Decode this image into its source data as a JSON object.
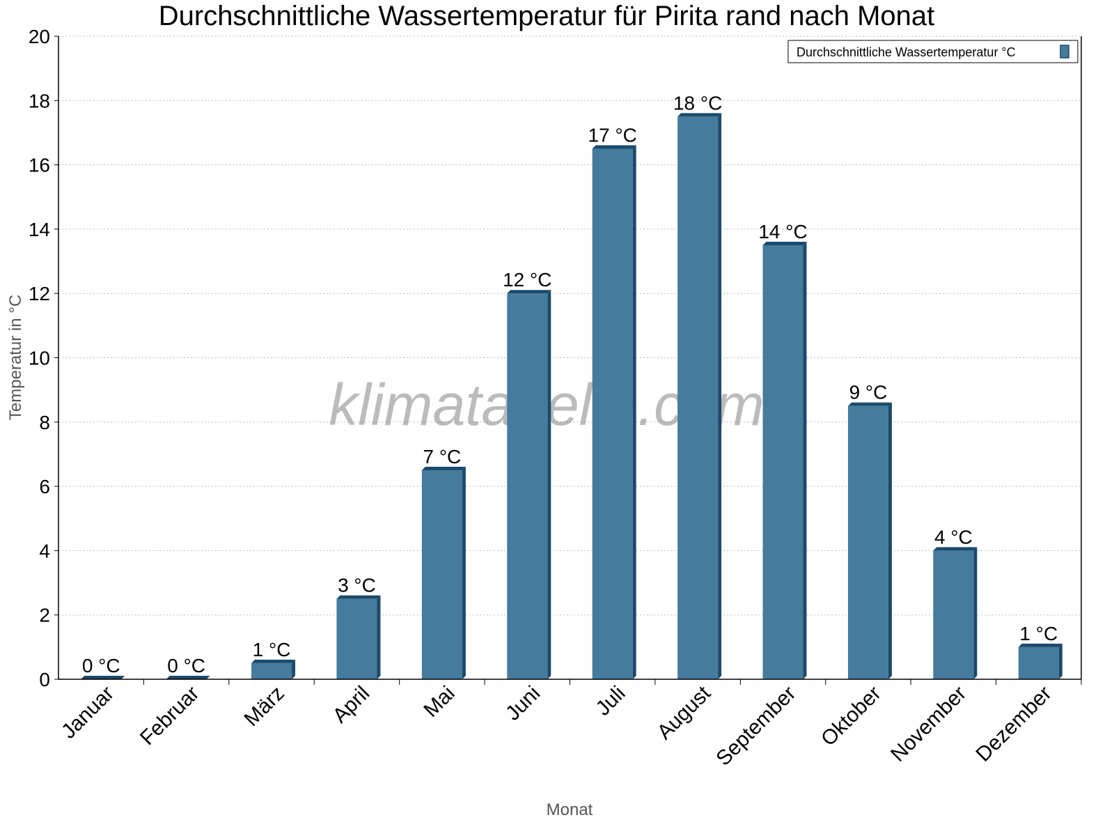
{
  "chart_data": {
    "type": "bar",
    "title": "Durchschnittliche Wassertemperatur für Pirita rand nach Monat",
    "xlabel": "Monat",
    "ylabel": "Temperatur in °C",
    "categories": [
      "Januar",
      "Februar",
      "März",
      "April",
      "Mai",
      "Juni",
      "Juli",
      "August",
      "September",
      "Oktober",
      "November",
      "Dezember"
    ],
    "series": [
      {
        "name": "Durchschnittliche Wassertemperatur °C",
        "values": [
          0,
          0,
          0.5,
          2.5,
          6.5,
          12,
          16.5,
          17.5,
          13.5,
          8.5,
          4,
          1
        ],
        "labels": [
          "0 °C",
          "0 °C",
          "1 °C",
          "3 °C",
          "7 °C",
          "12 °C",
          "17 °C",
          "18 °C",
          "14 °C",
          "9 °C",
          "4 °C",
          "1 °C"
        ],
        "color": "#457b9d",
        "side_color": "#1b4a6b"
      }
    ],
    "ylim": [
      0,
      20
    ],
    "yticks": [
      "0",
      "2",
      "4",
      "6",
      "8",
      "10",
      "12",
      "14",
      "16",
      "18",
      "20"
    ],
    "grid": true,
    "legend": "top-right",
    "watermark": "klimatabelle.com"
  }
}
